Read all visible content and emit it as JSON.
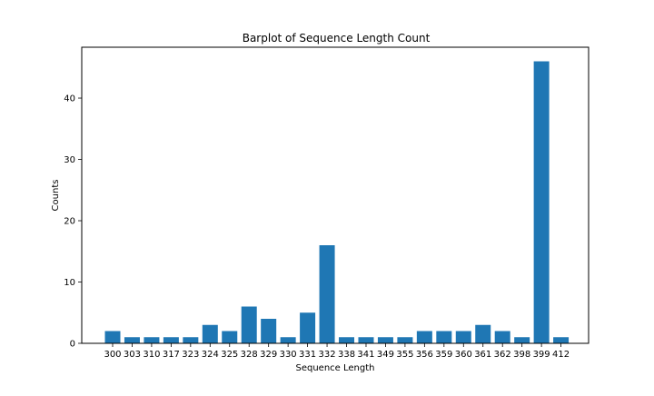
{
  "chart_data": {
    "type": "bar",
    "title": "Barplot of Sequence Length Count",
    "xlabel": "Sequence Length",
    "ylabel": "Counts",
    "categories": [
      "300",
      "303",
      "310",
      "317",
      "323",
      "324",
      "325",
      "328",
      "329",
      "330",
      "331",
      "332",
      "338",
      "341",
      "349",
      "355",
      "356",
      "359",
      "360",
      "361",
      "362",
      "398",
      "399",
      "412"
    ],
    "values": [
      2,
      1,
      1,
      1,
      1,
      3,
      2,
      6,
      4,
      1,
      5,
      16,
      1,
      1,
      1,
      1,
      2,
      2,
      2,
      3,
      2,
      1,
      46,
      1
    ],
    "ylim": [
      0,
      48.3
    ],
    "yticks": [
      0,
      10,
      20,
      30,
      40
    ],
    "grid": false,
    "bar_color": "#1f77b4"
  }
}
